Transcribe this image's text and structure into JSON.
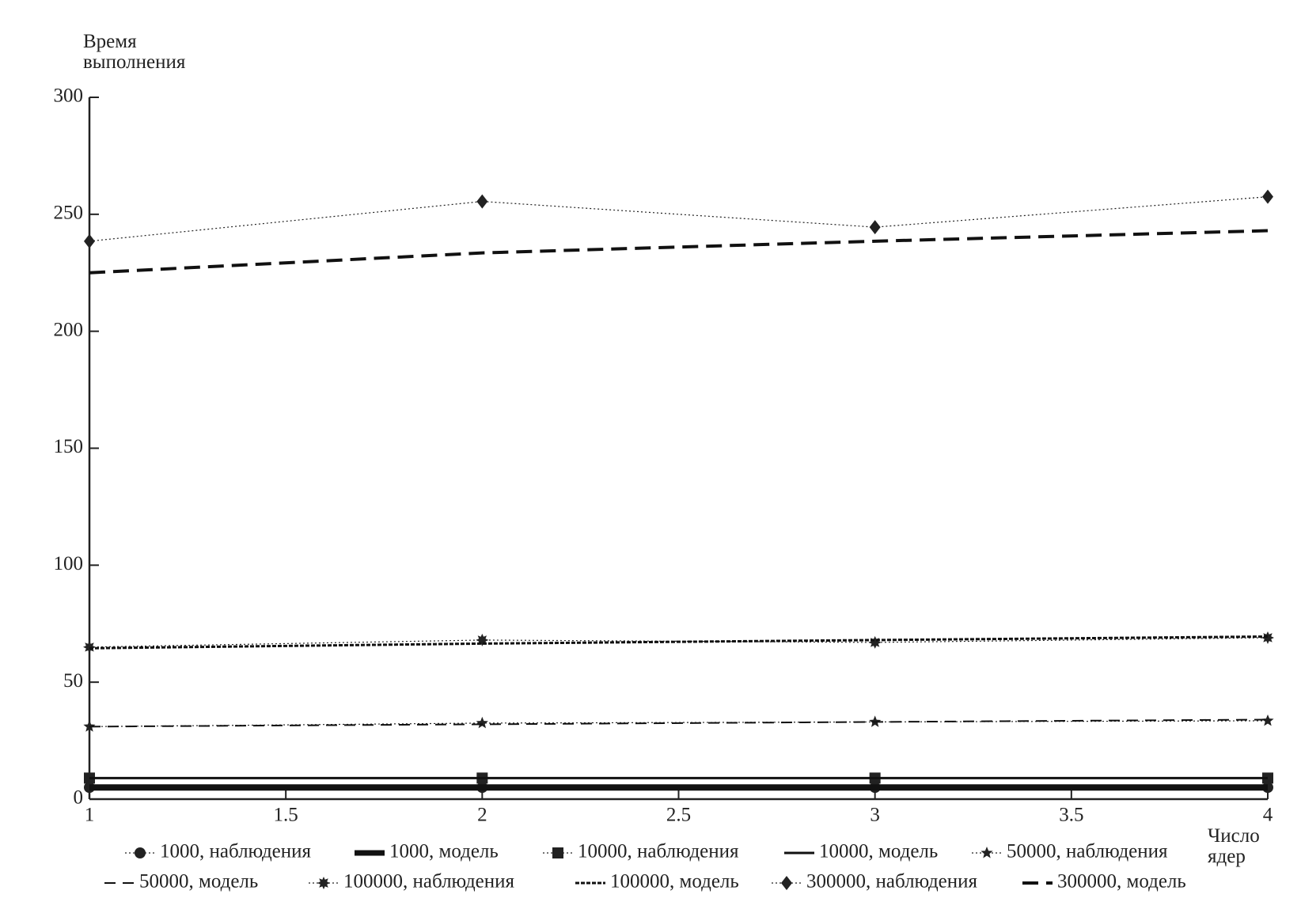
{
  "chart_data": {
    "type": "line",
    "y_label": "Время выполнения",
    "x_label": "Число ядер",
    "x": [
      1,
      2,
      3,
      4
    ],
    "xlim": [
      1,
      4
    ],
    "xticks": [
      1,
      1.5,
      2,
      2.5,
      3,
      3.5,
      4
    ],
    "ylim": [
      0,
      300
    ],
    "yticks": [
      0,
      50,
      100,
      150,
      200,
      250,
      300
    ],
    "grid": false,
    "legend": "bottom",
    "series": [
      {
        "name": "1000, наблюдения",
        "color": "#222222",
        "values": [
          5,
          5,
          5,
          5
        ],
        "marker": "circle",
        "line_style": "dotted",
        "line_width": 1.2
      },
      {
        "name": "1000, модель",
        "color": "#111111",
        "values": [
          5,
          5,
          5,
          5
        ],
        "marker": "none",
        "line_style": "solid",
        "line_width": 8
      },
      {
        "name": "10000, наблюдения",
        "color": "#222222",
        "values": [
          9,
          9,
          9,
          9
        ],
        "marker": "square",
        "line_style": "dotted",
        "line_width": 1.2
      },
      {
        "name": "10000, модель",
        "color": "#111111",
        "values": [
          9,
          9,
          9,
          9
        ],
        "marker": "none",
        "line_style": "solid",
        "line_width": 3
      },
      {
        "name": "50000, наблюдения",
        "color": "#222222",
        "values": [
          31,
          32.5,
          33,
          33.5
        ],
        "marker": "star",
        "line_style": "dotted",
        "line_width": 1.2
      },
      {
        "name": "50000, модель",
        "color": "#111111",
        "values": [
          31,
          32,
          33,
          34
        ],
        "marker": "none",
        "line_style": "dashed",
        "line_width": 2
      },
      {
        "name": "100000, наблюдения",
        "color": "#222222",
        "values": [
          65,
          68,
          67,
          69
        ],
        "marker": "burst",
        "line_style": "dotted",
        "line_width": 1.2
      },
      {
        "name": "100000, модель",
        "color": "#111111",
        "values": [
          64.5,
          66.5,
          68,
          69.5
        ],
        "marker": "none",
        "line_style": "fine-dashed",
        "line_width": 3
      },
      {
        "name": "300000, наблюдения",
        "color": "#222222",
        "values": [
          238.5,
          255.5,
          244.5,
          257.5
        ],
        "marker": "diamond",
        "line_style": "dotted",
        "line_width": 1.2
      },
      {
        "name": "300000, модель",
        "color": "#111111",
        "values": [
          225,
          233.5,
          238.5,
          243
        ],
        "marker": "none",
        "line_style": "long-dashed",
        "line_width": 4
      }
    ]
  }
}
